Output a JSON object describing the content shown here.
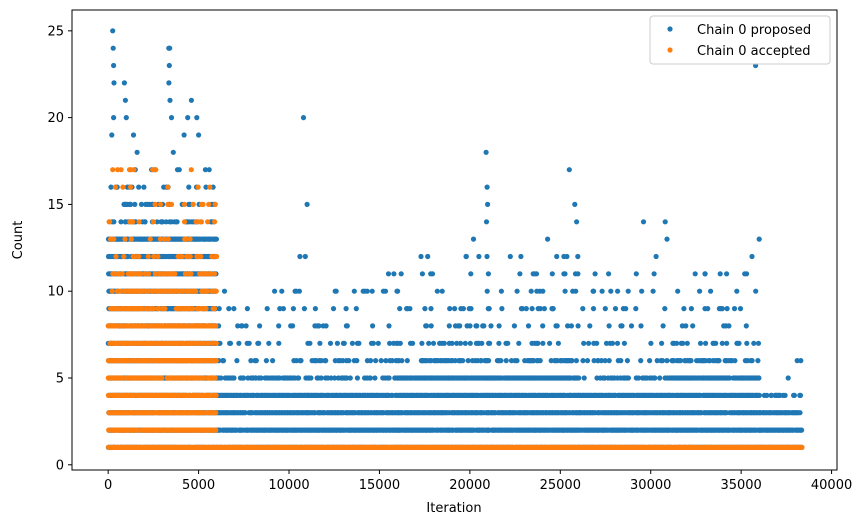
{
  "chart_data": {
    "type": "scatter",
    "title": "",
    "xlabel": "Iteration",
    "ylabel": "Count",
    "xlim": [
      -2000,
      40300
    ],
    "ylim": [
      -0.3,
      26.2
    ],
    "xticks": [
      0,
      5000,
      10000,
      15000,
      20000,
      25000,
      30000,
      35000,
      40000
    ],
    "xtick_labels": [
      "0",
      "5000",
      "10000",
      "15000",
      "20000",
      "25000",
      "30000",
      "35000",
      "40000"
    ],
    "yticks": [
      0,
      5,
      10,
      15,
      20,
      25
    ],
    "ytick_labels": [
      "0",
      "5",
      "10",
      "15",
      "20",
      "25"
    ],
    "grid": false,
    "legend_position": "top-right",
    "series": [
      {
        "name": "Chain 0 proposed",
        "color": "#1f77b4",
        "bands": [
          {
            "x_start": 0,
            "x_end": 6000,
            "y_dense_min": 1,
            "y_dense_max": 13,
            "y_sparse_max": 17
          },
          {
            "x_start": 6000,
            "x_end": 11000,
            "y_dense_min": 1,
            "y_dense_max": 4,
            "y_sparse_max": 10
          },
          {
            "x_start": 11000,
            "x_end": 16000,
            "y_dense_min": 1,
            "y_dense_max": 4,
            "y_sparse_max": 10
          },
          {
            "x_start": 16000,
            "x_end": 21000,
            "y_dense_min": 1,
            "y_dense_max": 5,
            "y_sparse_max": 12
          },
          {
            "x_start": 21000,
            "x_end": 26000,
            "y_dense_min": 1,
            "y_dense_max": 5,
            "y_sparse_max": 12
          },
          {
            "x_start": 26000,
            "x_end": 31000,
            "y_dense_min": 1,
            "y_dense_max": 4,
            "y_sparse_max": 11
          },
          {
            "x_start": 31000,
            "x_end": 36000,
            "y_dense_min": 1,
            "y_dense_max": 5,
            "y_sparse_max": 11
          },
          {
            "x_start": 36000,
            "x_end": 38400,
            "y_dense_min": 1,
            "y_dense_max": 3,
            "y_sparse_max": 4
          }
        ],
        "outliers": [
          {
            "x": 250,
            "y": 25
          },
          {
            "x": 280,
            "y": 24
          },
          {
            "x": 300,
            "y": 23
          },
          {
            "x": 320,
            "y": 22
          },
          {
            "x": 900,
            "y": 22
          },
          {
            "x": 950,
            "y": 21
          },
          {
            "x": 1000,
            "y": 20
          },
          {
            "x": 3350,
            "y": 24
          },
          {
            "x": 3400,
            "y": 24
          },
          {
            "x": 3380,
            "y": 23
          },
          {
            "x": 3360,
            "y": 22
          },
          {
            "x": 3420,
            "y": 21
          },
          {
            "x": 4600,
            "y": 21
          },
          {
            "x": 4400,
            "y": 20
          },
          {
            "x": 4900,
            "y": 20
          },
          {
            "x": 300,
            "y": 20
          },
          {
            "x": 200,
            "y": 19
          },
          {
            "x": 1400,
            "y": 19
          },
          {
            "x": 3500,
            "y": 20
          },
          {
            "x": 4200,
            "y": 19
          },
          {
            "x": 5000,
            "y": 19
          },
          {
            "x": 1600,
            "y": 18
          },
          {
            "x": 3600,
            "y": 18
          },
          {
            "x": 10800,
            "y": 20
          },
          {
            "x": 11000,
            "y": 15
          },
          {
            "x": 10600,
            "y": 12
          },
          {
            "x": 10900,
            "y": 12
          },
          {
            "x": 15500,
            "y": 11
          },
          {
            "x": 15800,
            "y": 11
          },
          {
            "x": 14200,
            "y": 10
          },
          {
            "x": 14600,
            "y": 10
          },
          {
            "x": 9600,
            "y": 10
          },
          {
            "x": 10400,
            "y": 10
          },
          {
            "x": 20900,
            "y": 18
          },
          {
            "x": 20950,
            "y": 16
          },
          {
            "x": 20980,
            "y": 15
          },
          {
            "x": 20920,
            "y": 14
          },
          {
            "x": 20200,
            "y": 13
          },
          {
            "x": 20500,
            "y": 12
          },
          {
            "x": 19800,
            "y": 12
          },
          {
            "x": 18200,
            "y": 10
          },
          {
            "x": 25500,
            "y": 17
          },
          {
            "x": 25800,
            "y": 15
          },
          {
            "x": 25900,
            "y": 14
          },
          {
            "x": 24300,
            "y": 13
          },
          {
            "x": 24800,
            "y": 12
          },
          {
            "x": 25200,
            "y": 12
          },
          {
            "x": 23500,
            "y": 11
          },
          {
            "x": 29600,
            "y": 14
          },
          {
            "x": 30800,
            "y": 14
          },
          {
            "x": 30900,
            "y": 13
          },
          {
            "x": 30300,
            "y": 12
          },
          {
            "x": 29200,
            "y": 11
          },
          {
            "x": 33000,
            "y": 11
          },
          {
            "x": 35800,
            "y": 23
          },
          {
            "x": 36000,
            "y": 13
          },
          {
            "x": 35600,
            "y": 12
          },
          {
            "x": 35300,
            "y": 11
          },
          {
            "x": 38100,
            "y": 6
          },
          {
            "x": 38300,
            "y": 6
          },
          {
            "x": 37600,
            "y": 5
          }
        ]
      },
      {
        "name": "Chain 0 accepted",
        "color": "#ff7f0e",
        "bands": [
          {
            "x_start": 0,
            "x_end": 6000,
            "y_dense_min": 1,
            "y_dense_max": 10,
            "y_sparse_max": 17
          },
          {
            "x_start": 6000,
            "x_end": 38400,
            "y_dense_min": 1,
            "y_dense_max": 1,
            "y_sparse_max": 1
          }
        ],
        "outliers": [
          {
            "x": 250,
            "y": 17
          },
          {
            "x": 400,
            "y": 16
          },
          {
            "x": 3300,
            "y": 16
          },
          {
            "x": 4700,
            "y": 15
          },
          {
            "x": 3500,
            "y": 15
          },
          {
            "x": 1200,
            "y": 14
          },
          {
            "x": 2500,
            "y": 14
          },
          {
            "x": 5500,
            "y": 14
          }
        ]
      }
    ]
  }
}
